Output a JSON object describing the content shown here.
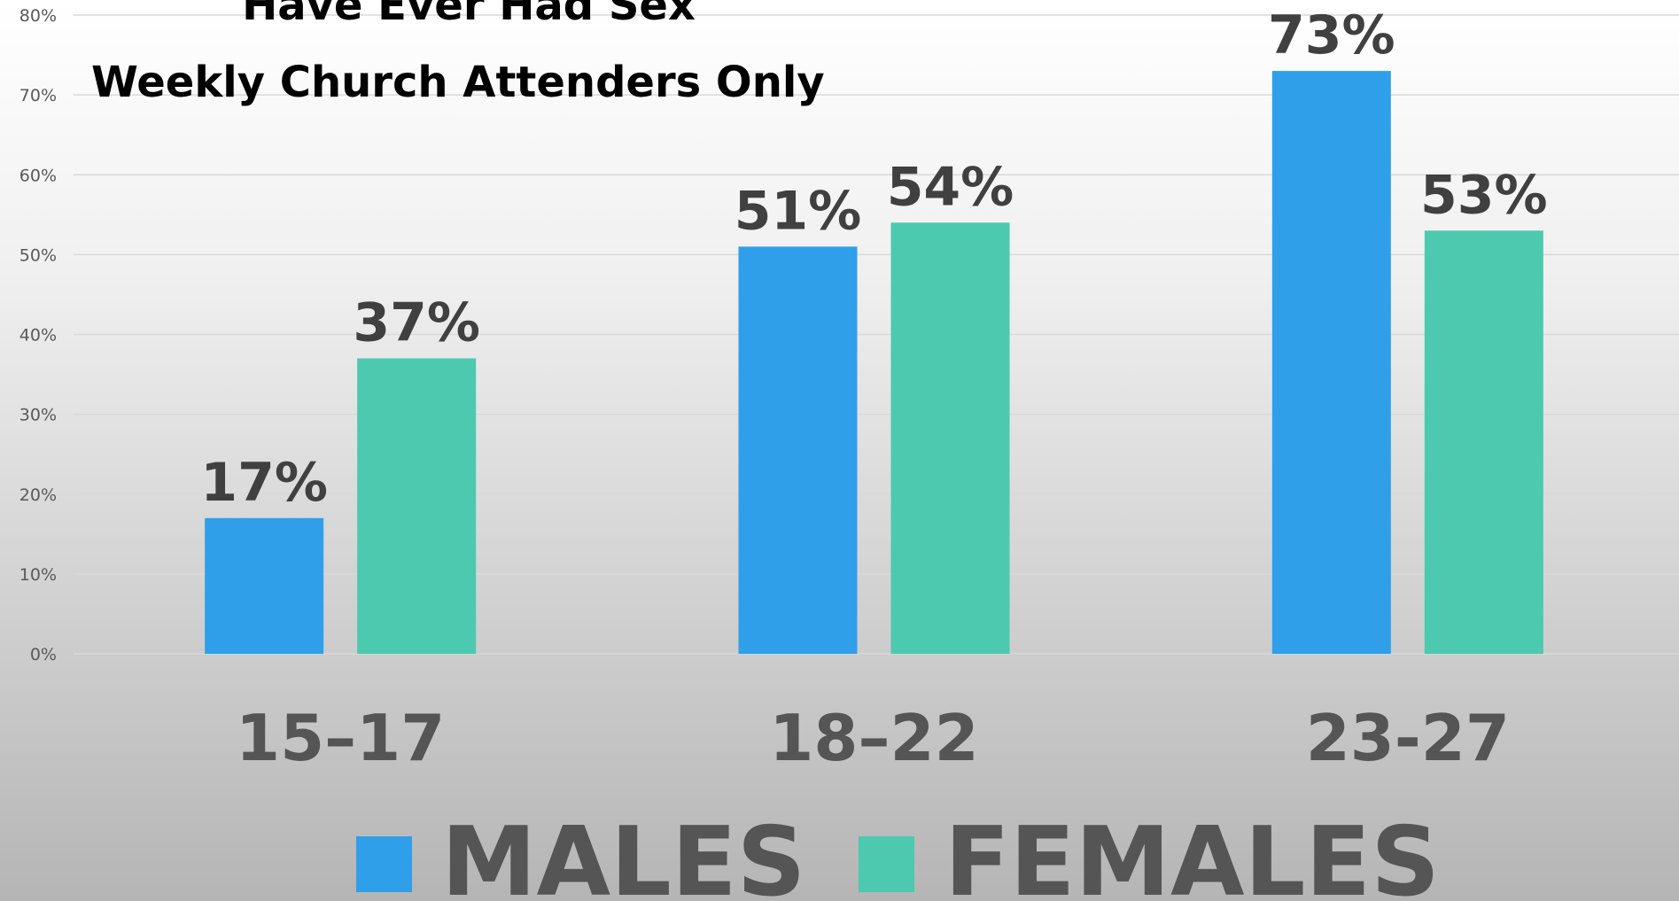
{
  "chart_data": {
    "type": "bar",
    "title": "Have Ever Had Sex",
    "subtitle": "Weekly Church Attenders Only",
    "categories": [
      "15–17",
      "18–22",
      "23-27"
    ],
    "series": [
      {
        "name": "MALES",
        "color": "#2f9fe9",
        "values": [
          17,
          51,
          73
        ],
        "value_labels": [
          "17%",
          "51%",
          "73%"
        ]
      },
      {
        "name": "FEMALES",
        "color": "#4cc9ae",
        "values": [
          37,
          54,
          53
        ],
        "value_labels": [
          "37%",
          "54%",
          "53%"
        ]
      }
    ],
    "ylim": [
      0,
      80
    ],
    "yticks": [
      {
        "value": 0,
        "label": "0%"
      },
      {
        "value": 10,
        "label": "10%"
      },
      {
        "value": 20,
        "label": "20%"
      },
      {
        "value": 30,
        "label": "30%"
      },
      {
        "value": 40,
        "label": "40%"
      },
      {
        "value": 50,
        "label": "50%"
      },
      {
        "value": 60,
        "label": "60%"
      },
      {
        "value": 70,
        "label": "70%"
      },
      {
        "value": 80,
        "label": "80%"
      }
    ],
    "grid": true,
    "legend": "bottom"
  }
}
